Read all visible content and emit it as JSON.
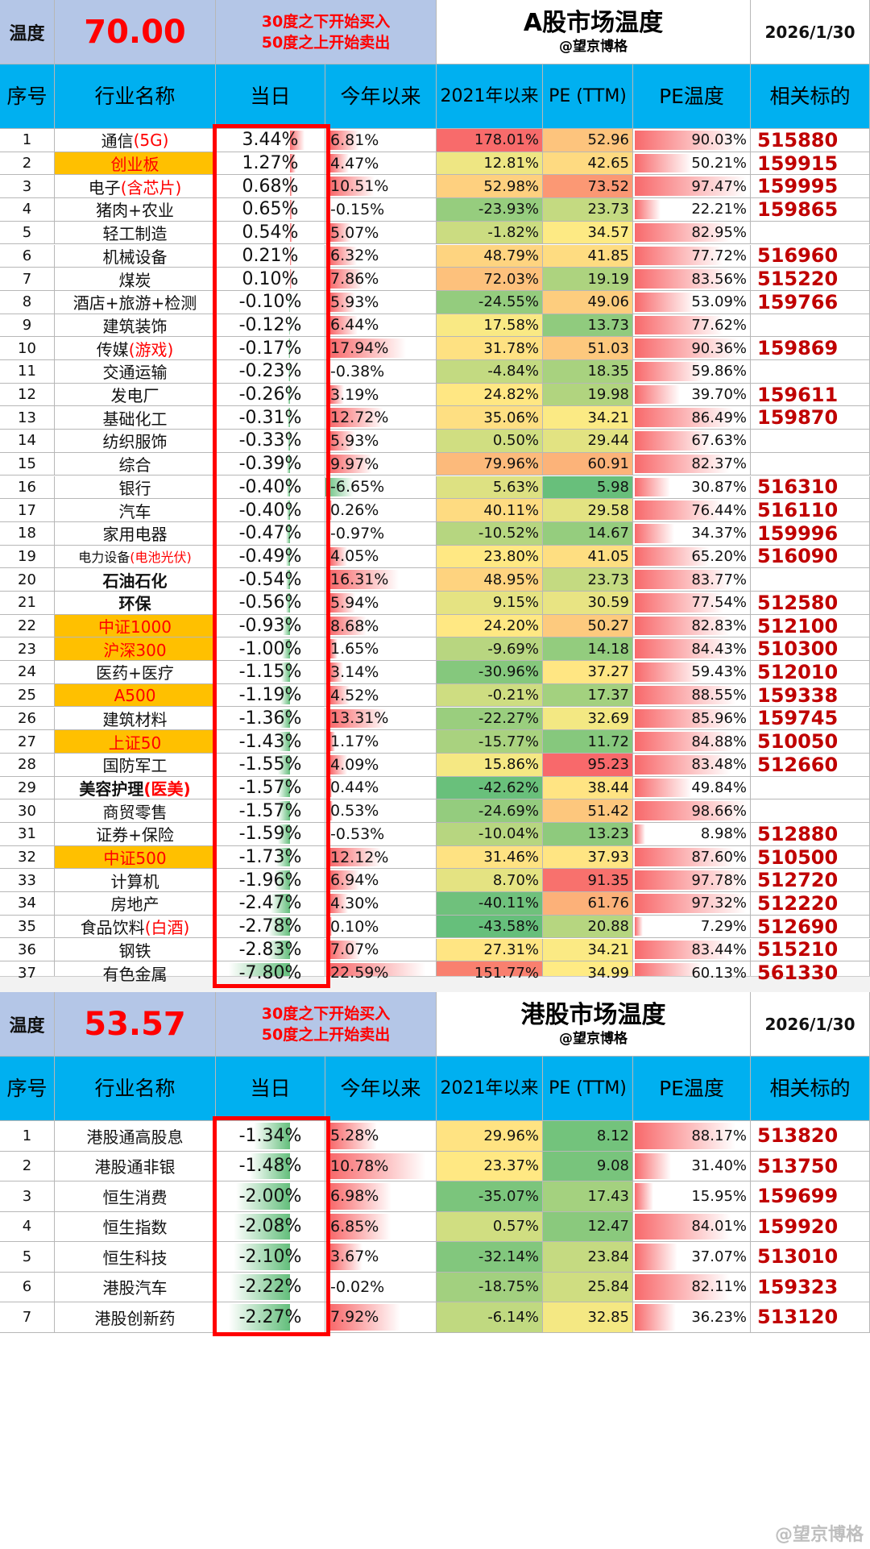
{
  "colors": {
    "header_blue": "#00b0f0",
    "temp_bg": "#b4c6e7",
    "highlight": "#ffc000",
    "code_red": "#c00000",
    "alert_red": "#ff0000"
  },
  "watermark": "@望京博格",
  "a_share": {
    "temp_label": "温度",
    "temp_value": "70.00",
    "rule_line1": "30度之下开始买入",
    "rule_line2": "50度之上开始卖出",
    "title": "A股市场温度",
    "subtitle": "@望京博格",
    "date": "2026/1/30",
    "headers": {
      "idx": "序号",
      "name": "行业名称",
      "day": "当日",
      "ytd": "今年以来",
      "y2021": "2021年以来",
      "pe": "PE (TTM)",
      "pe_temp": "PE温度",
      "code": "相关标的"
    },
    "rows": [
      {
        "idx": "1",
        "name": "通信",
        "suffix": "(5G)",
        "day": "3.44%",
        "ytd": "6.81%",
        "y2021": "178.01%",
        "pe": "52.96",
        "pet": "90.03%",
        "code": "515880"
      },
      {
        "idx": "2",
        "name": "创业板",
        "suffix": "",
        "day": "1.27%",
        "ytd": "4.47%",
        "y2021": "12.81%",
        "pe": "42.65",
        "pet": "50.21%",
        "code": "159915",
        "hl": true
      },
      {
        "idx": "3",
        "name": "电子",
        "suffix": "(含芯片)",
        "day": "0.68%",
        "ytd": "10.51%",
        "y2021": "52.98%",
        "pe": "73.52",
        "pet": "97.47%",
        "code": "159995"
      },
      {
        "idx": "4",
        "name": "猪肉+农业",
        "suffix": "",
        "day": "0.65%",
        "ytd": "-0.15%",
        "y2021": "-23.93%",
        "pe": "23.73",
        "pet": "22.21%",
        "code": "159865"
      },
      {
        "idx": "5",
        "name": "轻工制造",
        "suffix": "",
        "day": "0.54%",
        "ytd": "5.07%",
        "y2021": "-1.82%",
        "pe": "34.57",
        "pet": "82.95%",
        "code": ""
      },
      {
        "idx": "6",
        "name": "机械设备",
        "suffix": "",
        "day": "0.21%",
        "ytd": "6.32%",
        "y2021": "48.79%",
        "pe": "41.85",
        "pet": "77.72%",
        "code": "516960"
      },
      {
        "idx": "7",
        "name": "煤炭",
        "suffix": "",
        "day": "0.10%",
        "ytd": "7.86%",
        "y2021": "72.03%",
        "pe": "19.19",
        "pet": "83.56%",
        "code": "515220"
      },
      {
        "idx": "8",
        "name": "酒店+旅游+检测",
        "suffix": "",
        "day": "-0.10%",
        "ytd": "5.93%",
        "y2021": "-24.55%",
        "pe": "49.06",
        "pet": "53.09%",
        "code": "159766"
      },
      {
        "idx": "9",
        "name": "建筑装饰",
        "suffix": "",
        "day": "-0.12%",
        "ytd": "6.44%",
        "y2021": "17.58%",
        "pe": "13.73",
        "pet": "77.62%",
        "code": ""
      },
      {
        "idx": "10",
        "name": "传媒",
        "suffix": "(游戏)",
        "day": "-0.17%",
        "ytd": "17.94%",
        "y2021": "31.78%",
        "pe": "51.03",
        "pet": "90.36%",
        "code": "159869"
      },
      {
        "idx": "11",
        "name": "交通运输",
        "suffix": "",
        "day": "-0.23%",
        "ytd": "-0.38%",
        "y2021": "-4.84%",
        "pe": "18.35",
        "pet": "59.86%",
        "code": ""
      },
      {
        "idx": "12",
        "name": "发电厂",
        "suffix": "",
        "day": "-0.26%",
        "ytd": "3.19%",
        "y2021": "24.82%",
        "pe": "19.98",
        "pet": "39.70%",
        "code": "159611"
      },
      {
        "idx": "13",
        "name": "基础化工",
        "suffix": "",
        "day": "-0.31%",
        "ytd": "12.72%",
        "y2021": "35.06%",
        "pe": "34.21",
        "pet": "86.49%",
        "code": "159870"
      },
      {
        "idx": "14",
        "name": "纺织服饰",
        "suffix": "",
        "day": "-0.33%",
        "ytd": "5.93%",
        "y2021": "0.50%",
        "pe": "29.44",
        "pet": "67.63%",
        "code": ""
      },
      {
        "idx": "15",
        "name": "综合",
        "suffix": "",
        "day": "-0.39%",
        "ytd": "9.97%",
        "y2021": "79.96%",
        "pe": "60.91",
        "pet": "82.37%",
        "code": ""
      },
      {
        "idx": "16",
        "name": "银行",
        "suffix": "",
        "day": "-0.40%",
        "ytd": "-6.65%",
        "y2021": "5.63%",
        "pe": "5.98",
        "pet": "30.87%",
        "code": "516310"
      },
      {
        "idx": "17",
        "name": "汽车",
        "suffix": "",
        "day": "-0.40%",
        "ytd": "0.26%",
        "y2021": "40.11%",
        "pe": "29.58",
        "pet": "76.44%",
        "code": "516110"
      },
      {
        "idx": "18",
        "name": "家用电器",
        "suffix": "",
        "day": "-0.47%",
        "ytd": "-0.97%",
        "y2021": "-10.52%",
        "pe": "14.67",
        "pet": "34.37%",
        "code": "159996"
      },
      {
        "idx": "19",
        "name": "电力设备",
        "suffix": "(电池光伏)",
        "day": "-0.49%",
        "ytd": "4.05%",
        "y2021": "23.80%",
        "pe": "41.05",
        "pet": "65.20%",
        "code": "516090",
        "smallname": true
      },
      {
        "idx": "20",
        "name": "石油石化",
        "suffix": "",
        "day": "-0.54%",
        "ytd": "16.31%",
        "y2021": "48.95%",
        "pe": "23.73",
        "pet": "83.77%",
        "code": "",
        "boldname": true
      },
      {
        "idx": "21",
        "name": "环保",
        "suffix": "",
        "day": "-0.56%",
        "ytd": "5.94%",
        "y2021": "9.15%",
        "pe": "30.59",
        "pet": "77.54%",
        "code": "512580",
        "boldname": true
      },
      {
        "idx": "22",
        "name": "中证1000",
        "suffix": "",
        "day": "-0.93%",
        "ytd": "8.68%",
        "y2021": "24.20%",
        "pe": "50.27",
        "pet": "82.83%",
        "code": "512100",
        "hl": true
      },
      {
        "idx": "23",
        "name": "沪深300",
        "suffix": "",
        "day": "-1.00%",
        "ytd": "1.65%",
        "y2021": "-9.69%",
        "pe": "14.18",
        "pet": "84.43%",
        "code": "510300",
        "hl": true
      },
      {
        "idx": "24",
        "name": "医药+医疗",
        "suffix": "",
        "day": "-1.15%",
        "ytd": "3.14%",
        "y2021": "-30.96%",
        "pe": "37.27",
        "pet": "59.43%",
        "code": "512010"
      },
      {
        "idx": "25",
        "name": "A500",
        "suffix": "",
        "day": "-1.19%",
        "ytd": "4.52%",
        "y2021": "-0.21%",
        "pe": "17.37",
        "pet": "88.55%",
        "code": "159338",
        "hl": true
      },
      {
        "idx": "26",
        "name": "建筑材料",
        "suffix": "",
        "day": "-1.36%",
        "ytd": "13.31%",
        "y2021": "-22.27%",
        "pe": "32.69",
        "pet": "85.96%",
        "code": "159745"
      },
      {
        "idx": "27",
        "name": "上证50",
        "suffix": "",
        "day": "-1.43%",
        "ytd": "1.17%",
        "y2021": "-15.77%",
        "pe": "11.72",
        "pet": "84.88%",
        "code": "510050",
        "hl": true
      },
      {
        "idx": "28",
        "name": "国防军工",
        "suffix": "",
        "day": "-1.55%",
        "ytd": "4.09%",
        "y2021": "15.86%",
        "pe": "95.23",
        "pet": "83.48%",
        "code": "512660"
      },
      {
        "idx": "29",
        "name": "美容护理",
        "suffix": "(医美)",
        "day": "-1.57%",
        "ytd": "0.44%",
        "y2021": "-42.62%",
        "pe": "38.44",
        "pet": "49.84%",
        "code": "",
        "boldname": true
      },
      {
        "idx": "30",
        "name": "商贸零售",
        "suffix": "",
        "day": "-1.57%",
        "ytd": "0.53%",
        "y2021": "-24.69%",
        "pe": "51.42",
        "pet": "98.66%",
        "code": ""
      },
      {
        "idx": "31",
        "name": "证券+保险",
        "suffix": "",
        "day": "-1.59%",
        "ytd": "-0.53%",
        "y2021": "-10.04%",
        "pe": "13.23",
        "pet": "8.98%",
        "code": "512880"
      },
      {
        "idx": "32",
        "name": "中证500",
        "suffix": "",
        "day": "-1.73%",
        "ytd": "12.12%",
        "y2021": "31.46%",
        "pe": "37.93",
        "pet": "87.60%",
        "code": "510500",
        "hl": true
      },
      {
        "idx": "33",
        "name": "计算机",
        "suffix": "",
        "day": "-1.96%",
        "ytd": "6.94%",
        "y2021": "8.70%",
        "pe": "91.35",
        "pet": "97.78%",
        "code": "512720"
      },
      {
        "idx": "34",
        "name": "房地产",
        "suffix": "",
        "day": "-2.47%",
        "ytd": "4.30%",
        "y2021": "-40.11%",
        "pe": "61.76",
        "pet": "97.32%",
        "code": "512220"
      },
      {
        "idx": "35",
        "name": "食品饮料",
        "suffix": "(白酒)",
        "day": "-2.78%",
        "ytd": "0.10%",
        "y2021": "-43.58%",
        "pe": "20.88",
        "pet": "7.29%",
        "code": "512690"
      },
      {
        "idx": "36",
        "name": "钢铁",
        "suffix": "",
        "day": "-2.83%",
        "ytd": "7.07%",
        "y2021": "27.31%",
        "pe": "34.21",
        "pet": "83.44%",
        "code": "515210"
      },
      {
        "idx": "37",
        "name": "有色金属",
        "suffix": "",
        "day": "-7.80%",
        "ytd": "22.59%",
        "y2021": "151.77%",
        "pe": "34.99",
        "pet": "60.13%",
        "code": "561330"
      }
    ]
  },
  "hk_share": {
    "temp_label": "温度",
    "temp_value": "53.57",
    "rule_line1": "30度之下开始买入",
    "rule_line2": "50度之上开始卖出",
    "title": "港股市场温度",
    "subtitle": "@望京博格",
    "date": "2026/1/30",
    "headers": {
      "idx": "序号",
      "name": "行业名称",
      "day": "当日",
      "ytd": "今年以来",
      "y2021": "2021年以来",
      "pe": "PE (TTM)",
      "pe_temp": "PE温度",
      "code": "相关标的"
    },
    "rows": [
      {
        "idx": "1",
        "name": "港股通高股息",
        "suffix": "",
        "day": "-1.34%",
        "ytd": "5.28%",
        "y2021": "29.96%",
        "pe": "8.12",
        "pet": "88.17%",
        "code": "513820"
      },
      {
        "idx": "2",
        "name": "港股通非银",
        "suffix": "",
        "day": "-1.48%",
        "ytd": "10.78%",
        "y2021": "23.37%",
        "pe": "9.08",
        "pet": "31.40%",
        "code": "513750"
      },
      {
        "idx": "3",
        "name": "恒生消费",
        "suffix": "",
        "day": "-2.00%",
        "ytd": "6.98%",
        "y2021": "-35.07%",
        "pe": "17.43",
        "pet": "15.95%",
        "code": "159699"
      },
      {
        "idx": "4",
        "name": "恒生指数",
        "suffix": "",
        "day": "-2.08%",
        "ytd": "6.85%",
        "y2021": "0.57%",
        "pe": "12.47",
        "pet": "84.01%",
        "code": "159920"
      },
      {
        "idx": "5",
        "name": "恒生科技",
        "suffix": "",
        "day": "-2.10%",
        "ytd": "3.67%",
        "y2021": "-32.14%",
        "pe": "23.84",
        "pet": "37.07%",
        "code": "513010"
      },
      {
        "idx": "6",
        "name": "港股汽车",
        "suffix": "",
        "day": "-2.22%",
        "ytd": "-0.02%",
        "y2021": "-18.75%",
        "pe": "25.84",
        "pet": "82.11%",
        "code": "159323"
      },
      {
        "idx": "7",
        "name": "港股创新药",
        "suffix": "",
        "day": "-2.27%",
        "ytd": "7.92%",
        "y2021": "-6.14%",
        "pe": "32.85",
        "pet": "36.23%",
        "code": "513120"
      }
    ]
  }
}
